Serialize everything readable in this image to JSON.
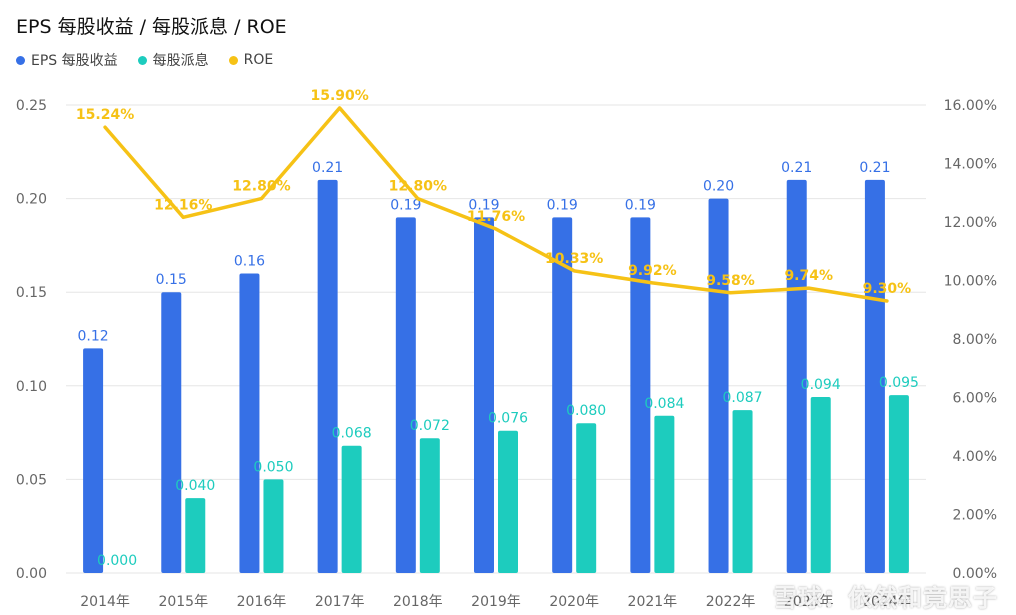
{
  "title": "EPS 每股收益 / 每股派息 / ROE",
  "colors": {
    "eps": "#3670E6",
    "dps": "#1DCCBE",
    "roe": "#F6C216",
    "grid": "#E6E6E6"
  },
  "watermark": "雪球：依然和竟思子",
  "chart_data": {
    "type": "bar",
    "categories": [
      "2014年",
      "2015年",
      "2016年",
      "2017年",
      "2018年",
      "2019年",
      "2020年",
      "2021年",
      "2022年",
      "2023年",
      "2024年"
    ],
    "series": [
      {
        "name": "EPS 每股收益",
        "kind": "bar",
        "axis": "left",
        "values": [
          0.12,
          0.15,
          0.16,
          0.21,
          0.19,
          0.19,
          0.19,
          0.19,
          0.2,
          0.21,
          0.21
        ],
        "labels": [
          "0.12",
          "0.15",
          "0.16",
          "0.21",
          "0.19",
          "0.19",
          "0.19",
          "0.19",
          "0.20",
          "0.21",
          "0.21"
        ]
      },
      {
        "name": "每股派息",
        "kind": "bar",
        "axis": "left",
        "values": [
          0.0,
          0.04,
          0.05,
          0.068,
          0.072,
          0.076,
          0.08,
          0.084,
          0.087,
          0.094,
          0.095
        ],
        "labels": [
          "0.000",
          "0.040",
          "0.050",
          "0.068",
          "0.072",
          "0.076",
          "0.080",
          "0.084",
          "0.087",
          "0.094",
          "0.095"
        ]
      },
      {
        "name": "ROE",
        "kind": "line",
        "axis": "right",
        "values": [
          15.24,
          12.16,
          12.8,
          15.9,
          12.8,
          11.76,
          10.33,
          9.92,
          9.58,
          9.74,
          9.3
        ],
        "labels": [
          "15.24%",
          "12.16%",
          "12.80%",
          "15.90%",
          "12.80%",
          "11.76%",
          "10.33%",
          "9.92%",
          "9.58%",
          "9.74%",
          "9.30%"
        ]
      }
    ],
    "y_left": {
      "min": 0,
      "max": 0.25,
      "ticks": [
        "0.00",
        "0.05",
        "0.10",
        "0.15",
        "0.20",
        "0.25"
      ]
    },
    "y_right": {
      "min": 0,
      "max": 16,
      "ticks": [
        "0.00%",
        "2.00%",
        "4.00%",
        "6.00%",
        "8.00%",
        "10.00%",
        "12.00%",
        "14.00%",
        "16.00%"
      ]
    },
    "grid": true,
    "legend": "top-left"
  }
}
